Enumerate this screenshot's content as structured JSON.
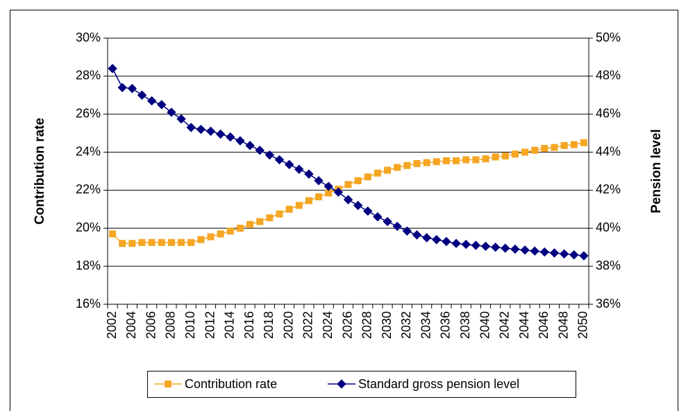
{
  "chart_data": {
    "type": "line",
    "y_label": "Contribution rate",
    "y2_label": "Pension level",
    "categories": [
      "2002",
      null,
      "2004",
      null,
      "2006",
      null,
      "2008",
      null,
      "2010",
      null,
      "2012",
      null,
      "2014",
      null,
      "2016",
      null,
      "2018",
      null,
      "2020",
      null,
      "2022",
      null,
      "2024",
      null,
      "2026",
      null,
      "2028",
      null,
      "2030",
      null,
      "2032",
      null,
      "2034",
      null,
      "2036",
      null,
      "2038",
      null,
      "2040",
      null,
      "2042",
      null,
      "2044",
      null,
      "2046",
      null,
      "2048",
      null,
      "2050"
    ],
    "series": [
      {
        "name": "Contribution rate",
        "color": "#f5a623",
        "marker": "square",
        "axis": "y",
        "values": [
          19.7,
          19.2,
          19.2,
          19.25,
          19.25,
          19.25,
          19.25,
          19.25,
          19.25,
          19.4,
          19.55,
          19.7,
          19.85,
          20.0,
          20.2,
          20.35,
          20.55,
          20.75,
          21.0,
          21.2,
          21.45,
          21.65,
          21.85,
          22.05,
          22.3,
          22.5,
          22.7,
          22.9,
          23.05,
          23.2,
          23.3,
          23.4,
          23.45,
          23.5,
          23.55,
          23.55,
          23.6,
          23.6,
          23.65,
          23.75,
          23.8,
          23.9,
          24.0,
          24.1,
          24.2,
          24.25,
          24.35,
          24.4,
          24.5
        ]
      },
      {
        "name": "Standard gross pension level",
        "color": "#000080",
        "marker": "diamond",
        "axis": "y2",
        "values": [
          48.4,
          47.4,
          47.35,
          47.0,
          46.7,
          46.5,
          46.1,
          45.75,
          45.3,
          45.2,
          45.1,
          44.95,
          44.8,
          44.6,
          44.35,
          44.1,
          43.85,
          43.6,
          43.35,
          43.1,
          42.85,
          42.5,
          42.2,
          41.9,
          41.5,
          41.2,
          40.9,
          40.6,
          40.35,
          40.1,
          39.85,
          39.65,
          39.5,
          39.4,
          39.3,
          39.2,
          39.15,
          39.1,
          39.05,
          39.0,
          38.95,
          38.9,
          38.85,
          38.8,
          38.75,
          38.7,
          38.65,
          38.6,
          38.55
        ]
      }
    ],
    "ylim": [
      16,
      30
    ],
    "yticks": [
      {
        "value": 16,
        "label": "16%"
      },
      {
        "value": 18,
        "label": "18%"
      },
      {
        "value": 20,
        "label": "20%"
      },
      {
        "value": 22,
        "label": "22%"
      },
      {
        "value": 24,
        "label": "24%"
      },
      {
        "value": 26,
        "label": "26%"
      },
      {
        "value": 28,
        "label": "28%"
      },
      {
        "value": 30,
        "label": "30%"
      }
    ],
    "y2lim": [
      36,
      50
    ],
    "y2ticks": [
      {
        "value": 36,
        "label": "36%"
      },
      {
        "value": 38,
        "label": "38%"
      },
      {
        "value": 40,
        "label": "40%"
      },
      {
        "value": 42,
        "label": "42%"
      },
      {
        "value": 44,
        "label": "44%"
      },
      {
        "value": 46,
        "label": "46%"
      },
      {
        "value": 48,
        "label": "48%"
      },
      {
        "value": 50,
        "label": "50%"
      }
    ],
    "grid": true,
    "legend": "bottom"
  }
}
